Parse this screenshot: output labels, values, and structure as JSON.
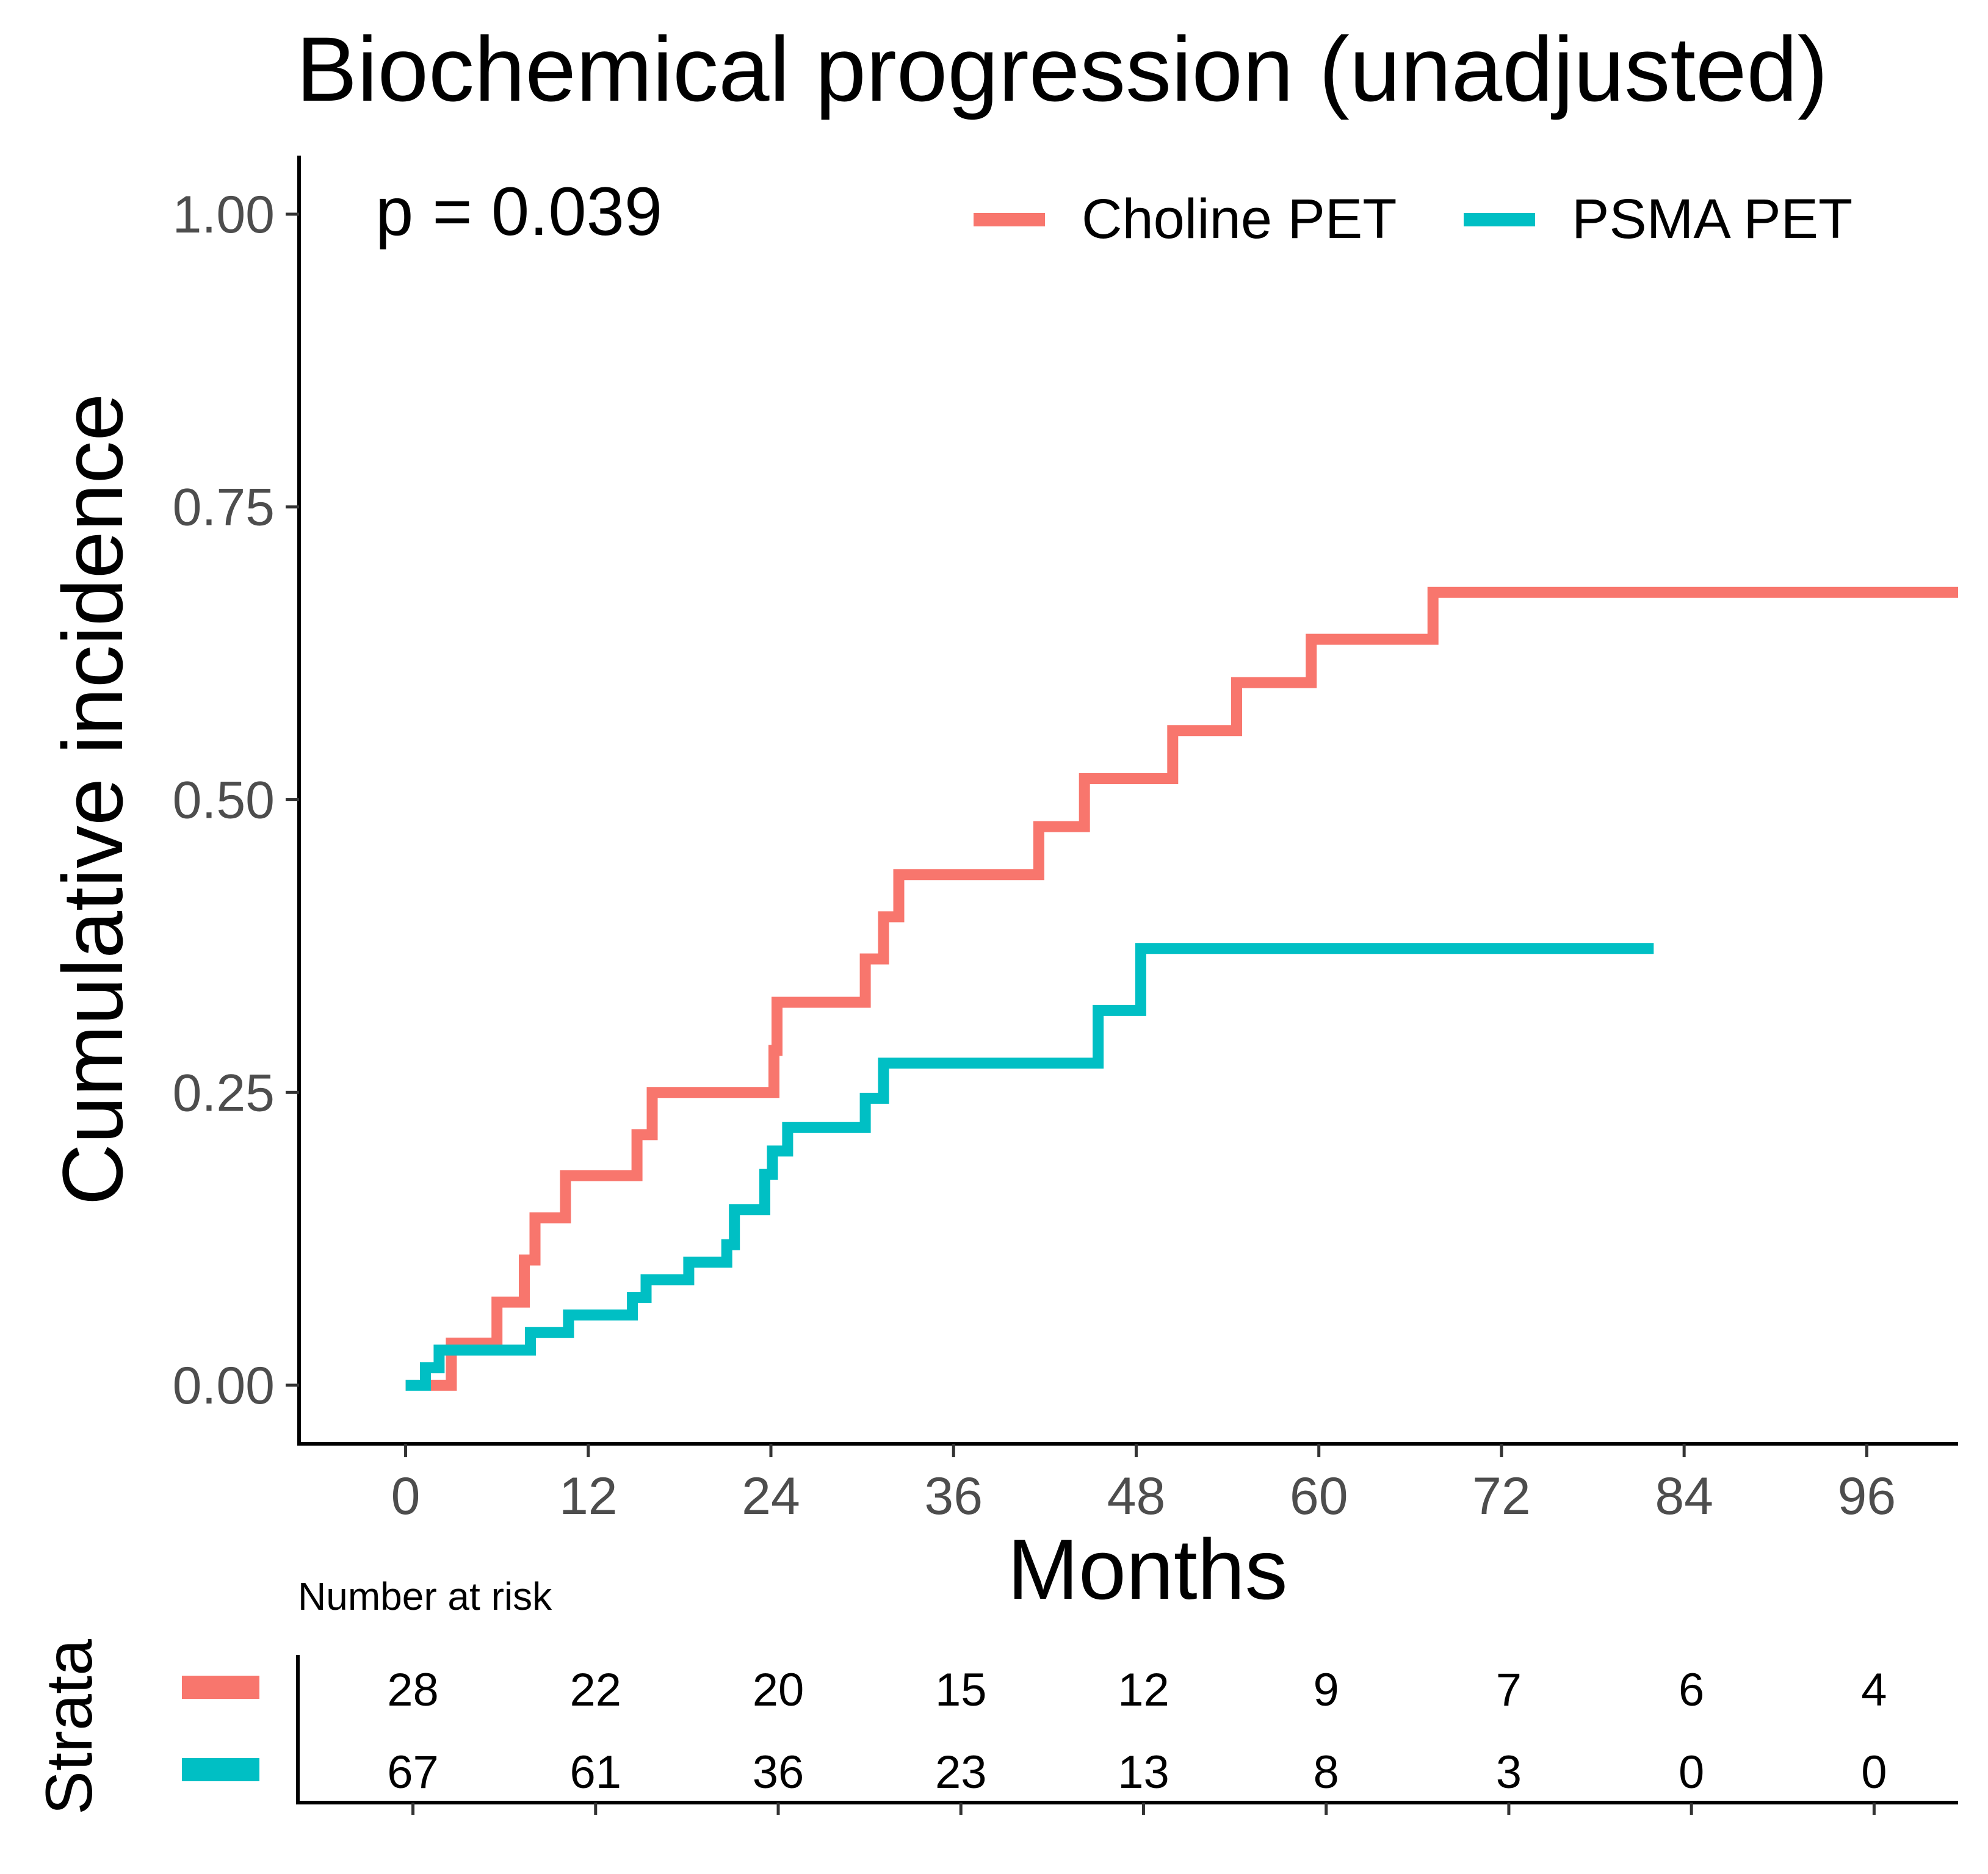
{
  "chart_data": {
    "type": "line",
    "subtype": "step",
    "title": "Biochemical progression (unadjusted)",
    "xlabel": "Months",
    "ylabel": "Cumulative incidence",
    "xlim": [
      -7,
      102
    ],
    "ylim": [
      -0.05,
      1.05
    ],
    "xticks": [
      0,
      12,
      24,
      36,
      48,
      60,
      72,
      84,
      96
    ],
    "yticks": [
      0.0,
      0.25,
      0.5,
      0.75,
      1.0
    ],
    "ytick_labels": [
      "0.00",
      "0.25",
      "0.50",
      "0.75",
      "1.00"
    ],
    "grid": false,
    "legend_position": "top-right",
    "annotations": [
      {
        "text": "p = 0.039"
      }
    ],
    "series": [
      {
        "name": "Choline PET",
        "color": "#f8766d",
        "x": [
          0,
          3,
          6,
          7.8,
          8.5,
          10.5,
          15.2,
          16.2,
          24.2,
          24.4,
          30.2,
          31.4,
          32.4,
          41.6,
          44.6,
          50.4,
          54.6,
          59.5,
          67.5,
          102
        ],
        "y": [
          0,
          0.036,
          0.071,
          0.107,
          0.143,
          0.179,
          0.214,
          0.25,
          0.286,
          0.327,
          0.364,
          0.4,
          0.436,
          0.477,
          0.518,
          0.559,
          0.6,
          0.637,
          0.677,
          0.677
        ]
      },
      {
        "name": "PSMA PET",
        "color": "#00bfc4",
        "x": [
          0,
          1.3,
          2.2,
          8.2,
          10.7,
          14.9,
          15.8,
          18.6,
          21.1,
          21.6,
          23.6,
          24.1,
          25.1,
          30.2,
          31.4,
          45.5,
          48.3,
          82
        ],
        "y": [
          0,
          0.015,
          0.03,
          0.045,
          0.06,
          0.075,
          0.09,
          0.105,
          0.12,
          0.15,
          0.18,
          0.2,
          0.22,
          0.245,
          0.275,
          0.32,
          0.373,
          0.373
        ]
      }
    ],
    "risk_table": {
      "title": "Number at risk",
      "strata_label": "Strata",
      "times": [
        0,
        12,
        24,
        36,
        48,
        60,
        72,
        84,
        96
      ],
      "rows": [
        {
          "name": "Choline PET",
          "color": "#f8766d",
          "values": [
            "28",
            "22",
            "20",
            "15",
            "12",
            "9",
            "7",
            "6",
            "4"
          ]
        },
        {
          "name": "PSMA PET",
          "color": "#00bfc4",
          "values": [
            "67",
            "61",
            "36",
            "23",
            "13",
            "8",
            "3",
            "0",
            "0"
          ]
        }
      ]
    }
  }
}
